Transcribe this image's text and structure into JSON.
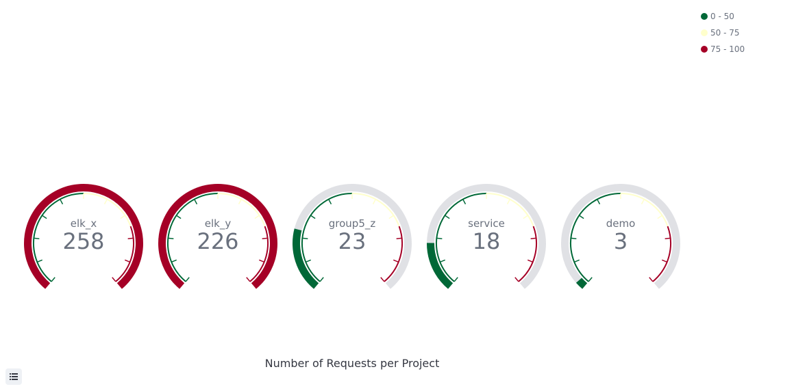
{
  "chart_data": {
    "type": "gauge",
    "title": "Number of Requests per Project",
    "range": [
      0,
      100
    ],
    "gauges": [
      {
        "label": "elk_x",
        "value": 258,
        "display": "258"
      },
      {
        "label": "elk_y",
        "value": 226,
        "display": "226"
      },
      {
        "label": "group5_z",
        "value": 23,
        "display": "23"
      },
      {
        "label": "service",
        "value": 18,
        "display": "18"
      },
      {
        "label": "demo",
        "value": 3,
        "display": "3"
      }
    ],
    "ranges": [
      {
        "label": "0 - 50",
        "from": 0,
        "to": 50,
        "color": "#006837"
      },
      {
        "label": "50 - 75",
        "from": 50,
        "to": 75,
        "color": "#ffffcc"
      },
      {
        "label": "75 - 100",
        "from": 75,
        "to": 100,
        "color": "#a50026"
      }
    ],
    "legend_position": "top-right",
    "track_color": "#e0e1e5",
    "text_color": "#69707d"
  },
  "legend": {
    "items": [
      {
        "label": "0 - 50",
        "color": "#006837"
      },
      {
        "label": "50 - 75",
        "color": "#ffffcc"
      },
      {
        "label": "75 - 100",
        "color": "#a50026"
      }
    ]
  },
  "icons": {
    "legend_toggle": "list-icon"
  }
}
